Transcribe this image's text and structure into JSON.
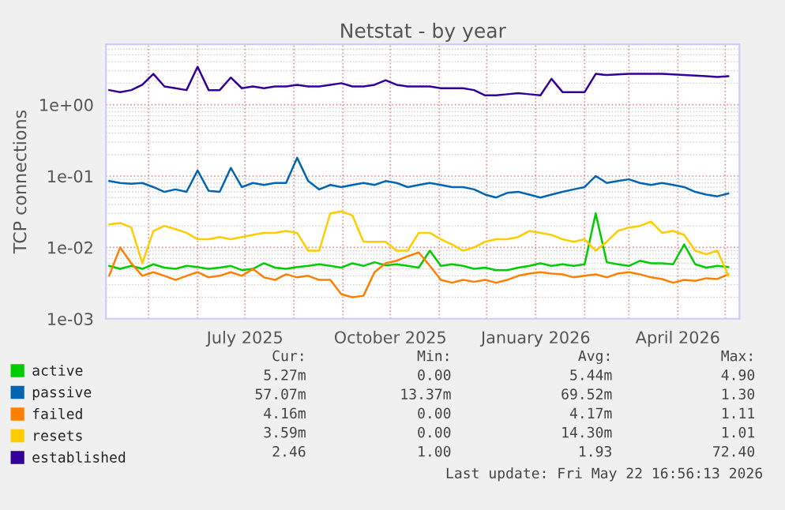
{
  "chart_data": {
    "type": "line",
    "title": "Netstat - by year",
    "ylabel": "TCP connections",
    "x": [
      "2025-04-06",
      "2025-04-13",
      "2025-04-20",
      "2025-04-27",
      "2025-05-04",
      "2025-05-11",
      "2025-05-18",
      "2025-05-25",
      "2025-06-01",
      "2025-06-08",
      "2025-06-15",
      "2025-06-22",
      "2025-06-29",
      "2025-07-06",
      "2025-07-13",
      "2025-07-20",
      "2025-07-27",
      "2025-08-03",
      "2025-08-10",
      "2025-08-17",
      "2025-08-24",
      "2025-08-31",
      "2025-09-07",
      "2025-09-14",
      "2025-09-21",
      "2025-09-28",
      "2025-10-05",
      "2025-10-12",
      "2025-10-19",
      "2025-10-26",
      "2025-11-02",
      "2025-11-09",
      "2025-11-16",
      "2025-11-23",
      "2025-11-30",
      "2025-12-07",
      "2025-12-14",
      "2025-12-21",
      "2025-12-28",
      "2026-01-04",
      "2026-01-11",
      "2026-01-18",
      "2026-01-25",
      "2026-02-01",
      "2026-02-08",
      "2026-02-15",
      "2026-02-22",
      "2026-03-01",
      "2026-03-08",
      "2026-03-15",
      "2026-03-22",
      "2026-03-29",
      "2026-04-05",
      "2026-04-12",
      "2026-04-19",
      "2026-04-26",
      "2026-05-03"
    ],
    "series": [
      {
        "name": "active",
        "color": "#00cc00",
        "values": [
          0.0055,
          0.005,
          0.0055,
          0.005,
          0.0058,
          0.0052,
          0.005,
          0.0055,
          0.0053,
          0.005,
          0.0052,
          0.0055,
          0.0048,
          0.005,
          0.006,
          0.0052,
          0.005,
          0.0053,
          0.0055,
          0.0058,
          0.0055,
          0.0052,
          0.006,
          0.0055,
          0.0062,
          0.0056,
          0.0058,
          0.0055,
          0.0052,
          0.009,
          0.0055,
          0.0058,
          0.0055,
          0.005,
          0.0052,
          0.0048,
          0.0048,
          0.0052,
          0.0055,
          0.006,
          0.0055,
          0.0058,
          0.0055,
          0.0058,
          0.03,
          0.0062,
          0.0058,
          0.0055,
          0.0065,
          0.006,
          0.006,
          0.0058,
          0.011,
          0.0058,
          0.0052,
          0.0055,
          0.0053
        ]
      },
      {
        "name": "passive",
        "color": "#0066b3",
        "values": [
          0.085,
          0.08,
          0.078,
          0.08,
          0.07,
          0.06,
          0.065,
          0.06,
          0.12,
          0.062,
          0.06,
          0.13,
          0.07,
          0.08,
          0.075,
          0.08,
          0.08,
          0.18,
          0.085,
          0.065,
          0.075,
          0.07,
          0.075,
          0.08,
          0.075,
          0.085,
          0.08,
          0.07,
          0.075,
          0.08,
          0.075,
          0.07,
          0.07,
          0.065,
          0.055,
          0.05,
          0.058,
          0.06,
          0.055,
          0.05,
          0.055,
          0.06,
          0.065,
          0.07,
          0.1,
          0.08,
          0.085,
          0.09,
          0.08,
          0.075,
          0.08,
          0.075,
          0.07,
          0.06,
          0.055,
          0.052,
          0.057
        ]
      },
      {
        "name": "failed",
        "color": "#ff8000",
        "values": [
          0.004,
          0.01,
          0.006,
          0.004,
          0.0045,
          0.004,
          0.0035,
          0.004,
          0.0045,
          0.0038,
          0.004,
          0.0045,
          0.004,
          0.005,
          0.0038,
          0.0035,
          0.0042,
          0.0038,
          0.004,
          0.0035,
          0.0035,
          0.0022,
          0.002,
          0.0021,
          0.0045,
          0.006,
          0.0065,
          0.0075,
          0.0085,
          0.0055,
          0.0035,
          0.0032,
          0.0035,
          0.0033,
          0.0035,
          0.0032,
          0.0035,
          0.004,
          0.0043,
          0.0045,
          0.0043,
          0.0042,
          0.0038,
          0.004,
          0.0042,
          0.0038,
          0.0043,
          0.0045,
          0.0042,
          0.0038,
          0.0036,
          0.0032,
          0.0035,
          0.0034,
          0.0037,
          0.0036,
          0.0042
        ]
      },
      {
        "name": "resets",
        "color": "#ffcc00",
        "values": [
          0.021,
          0.022,
          0.019,
          0.006,
          0.017,
          0.02,
          0.018,
          0.016,
          0.013,
          0.013,
          0.014,
          0.013,
          0.014,
          0.015,
          0.016,
          0.016,
          0.017,
          0.016,
          0.009,
          0.009,
          0.03,
          0.032,
          0.028,
          0.012,
          0.012,
          0.012,
          0.009,
          0.009,
          0.016,
          0.016,
          0.013,
          0.011,
          0.009,
          0.01,
          0.012,
          0.013,
          0.013,
          0.014,
          0.017,
          0.016,
          0.015,
          0.013,
          0.012,
          0.013,
          0.009,
          0.012,
          0.017,
          0.019,
          0.02,
          0.023,
          0.016,
          0.017,
          0.015,
          0.009,
          0.008,
          0.009,
          0.004
        ]
      },
      {
        "name": "established",
        "color": "#330099",
        "values": [
          1.6,
          1.5,
          1.6,
          1.9,
          2.7,
          1.8,
          1.7,
          1.6,
          3.4,
          1.6,
          1.6,
          2.4,
          1.7,
          1.8,
          1.7,
          1.8,
          1.8,
          1.9,
          1.8,
          1.8,
          1.9,
          2.0,
          1.8,
          1.8,
          1.9,
          2.2,
          1.9,
          1.8,
          1.8,
          1.8,
          1.7,
          1.7,
          1.7,
          1.6,
          1.35,
          1.35,
          1.4,
          1.45,
          1.4,
          1.35,
          2.3,
          1.5,
          1.5,
          1.5,
          2.7,
          2.6,
          2.65,
          2.7,
          2.7,
          2.7,
          2.7,
          2.65,
          2.6,
          2.55,
          2.5,
          2.45,
          2.5
        ]
      }
    ],
    "log": "y",
    "ylim": [
      0.001,
      7
    ],
    "yticks": [
      {
        "value": 0.001,
        "label": "1e-03"
      },
      {
        "value": 0.01,
        "label": "1e-02"
      },
      {
        "value": 0.1,
        "label": "1e-01"
      },
      {
        "value": 1,
        "label": "1e+00"
      }
    ],
    "xlim": [
      "2025-04-04",
      "2026-05-10"
    ],
    "xticks": [
      {
        "value": "2025-05-01",
        "label": null
      },
      {
        "value": "2025-06-01",
        "label": null
      },
      {
        "value": "2025-07-01",
        "label": "July 2025"
      },
      {
        "value": "2025-08-01",
        "label": null
      },
      {
        "value": "2025-09-01",
        "label": null
      },
      {
        "value": "2025-10-01",
        "label": "October 2025"
      },
      {
        "value": "2025-11-01",
        "label": null
      },
      {
        "value": "2025-12-01",
        "label": null
      },
      {
        "value": "2026-01-01",
        "label": "January 2026"
      },
      {
        "value": "2026-02-01",
        "label": null
      },
      {
        "value": "2026-03-01",
        "label": null
      },
      {
        "value": "2026-04-01",
        "label": "April 2026"
      },
      {
        "value": "2026-05-01",
        "label": null
      }
    ],
    "grid": true,
    "legend": "bottom",
    "line_style": "solid",
    "annotations": [
      "Cur:",
      "Min:",
      "Avg:",
      "Max:",
      "5.27m",
      "0.00",
      "5.44m",
      "4.90",
      "57.07m",
      "13.37m",
      "69.52m",
      "1.30",
      "4.16m",
      "0.00",
      "4.17m",
      "1.11",
      "3.59m",
      "0.00",
      "14.30m",
      "1.01",
      "2.46",
      "1.00",
      "1.93",
      "72.40",
      "Last update: Fri May 22 16:56:13 2026"
    ]
  }
}
